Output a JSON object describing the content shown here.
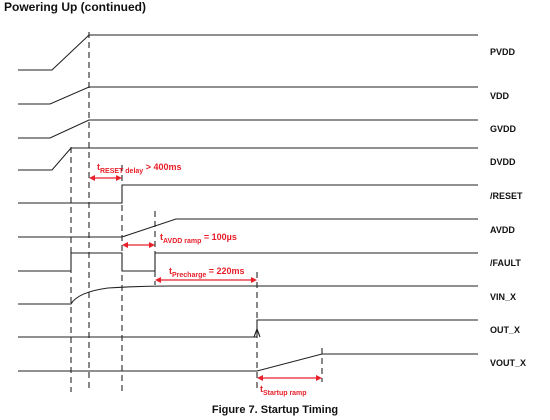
{
  "title": "Powering Up (continued)",
  "caption": "Figure 7.  Startup Timing",
  "colors": {
    "waveform": "#222222",
    "annotation": "#e8202a",
    "marker": "#111111"
  },
  "signals": [
    {
      "id": "pvdd",
      "label": "PVDD"
    },
    {
      "id": "vdd",
      "label": "VDD"
    },
    {
      "id": "gvdd",
      "label": "GVDD"
    },
    {
      "id": "dvdd",
      "label": "DVDD"
    },
    {
      "id": "reset",
      "label": "/RESET"
    },
    {
      "id": "avdd",
      "label": "AVDD"
    },
    {
      "id": "fault",
      "label": "/FAULT"
    },
    {
      "id": "vin",
      "label": "VIN_X"
    },
    {
      "id": "out",
      "label": "OUT_X"
    },
    {
      "id": "vout",
      "label": "VOUT_X"
    }
  ],
  "annotations": {
    "reset_delay": {
      "t": "t",
      "sub": "RESET delay",
      "rest": " > 400ms"
    },
    "avdd_ramp": {
      "t": "t",
      "sub": "AVDD ramp",
      "rest": " = 100µs"
    },
    "precharge": {
      "t": "t",
      "sub": "Precharge",
      "rest": " = 220ms"
    },
    "startup_ramp": {
      "t": "t",
      "sub": "Startup ramp",
      "rest": ""
    }
  }
}
